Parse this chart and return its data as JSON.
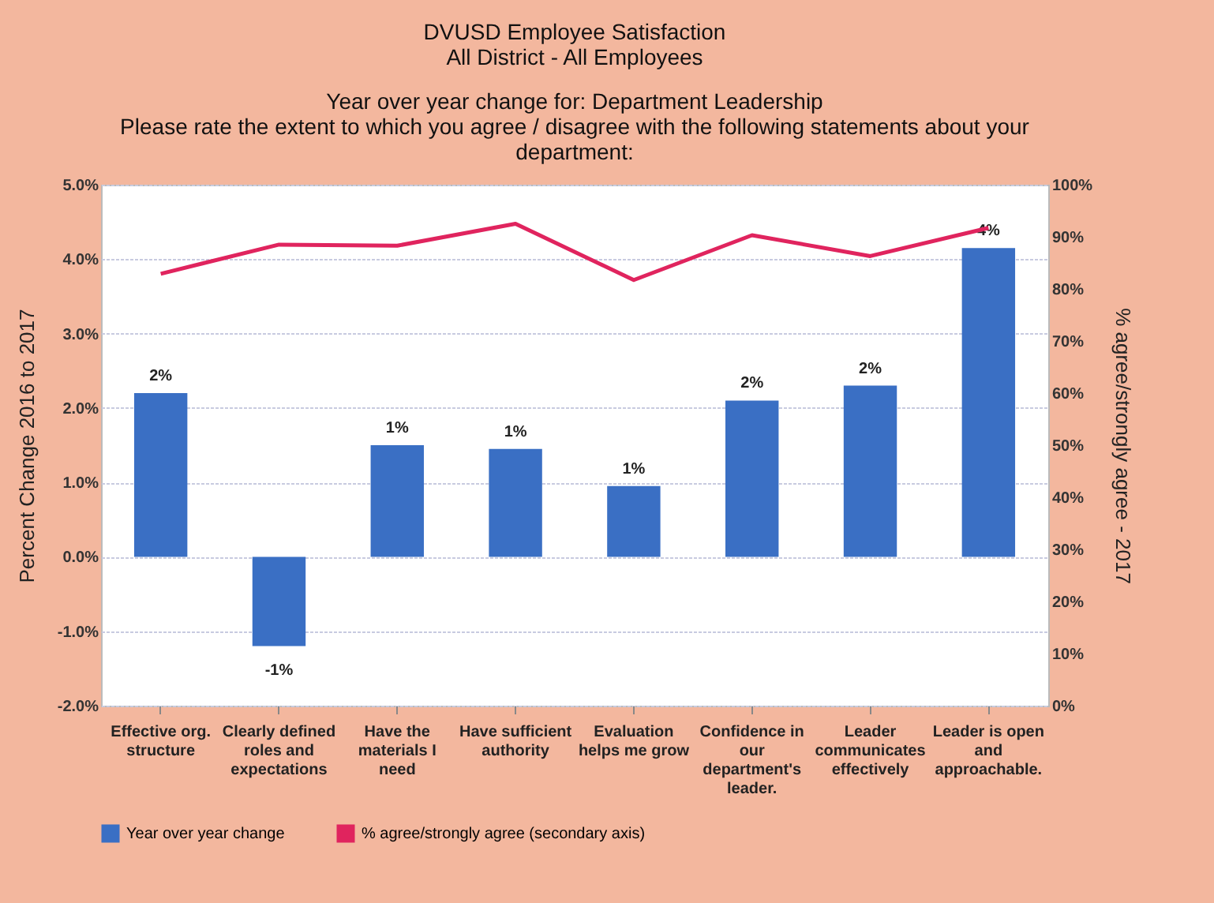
{
  "chart_data": {
    "type": "bar",
    "title": "DVUSD Employee Satisfaction\nAll District  -  All Employees",
    "subtitle": "Year over year change for:   Department Leadership\nPlease rate the extent to which you agree / disagree with the following statements about your\ndepartment:",
    "ylabel": "Percent Change 2016  to 2017",
    "y2label": "% agree/strongly agree - 2017",
    "categories": [
      "Effective org. structure",
      "Clearly defined roles and expectations",
      "Have the materials I need",
      "Have sufficient authority",
      "Evaluation helps me grow",
      "Confidence in our department's leader.",
      "Leader communicates effectively",
      "Leader is open and approachable."
    ],
    "series": [
      {
        "name": "Year over year change",
        "color": "#3a6fc4",
        "values": [
          2.2,
          -1.2,
          1.5,
          1.45,
          0.95,
          2.1,
          2.3,
          4.15
        ],
        "value_labels": [
          "2%",
          "-1%",
          "1%",
          "1%",
          "1%",
          "2%",
          "2%",
          "4%"
        ]
      },
      {
        "name": "% agree/strongly agree (secondary axis)",
        "type": "line",
        "axis": "y2",
        "color": "#e0245e",
        "values": [
          82.9,
          88.5,
          88.3,
          92.5,
          81.7,
          90.3,
          86.3,
          91.7
        ]
      }
    ],
    "ylim": [
      -2,
      5
    ],
    "yticks": [
      {
        "value": -2,
        "label": "-2.0%"
      },
      {
        "value": -1,
        "label": "-1.0%"
      },
      {
        "value": 0,
        "label": "0.0%"
      },
      {
        "value": 1,
        "label": "1.0%"
      },
      {
        "value": 2,
        "label": "2.0%"
      },
      {
        "value": 3,
        "label": "3.0%"
      },
      {
        "value": 4,
        "label": "4.0%"
      },
      {
        "value": 5,
        "label": "5.0%"
      }
    ],
    "y2lim": [
      0,
      100
    ],
    "y2ticks": [
      {
        "value": 0,
        "label": "0%"
      },
      {
        "value": 10,
        "label": "10%"
      },
      {
        "value": 20,
        "label": "20%"
      },
      {
        "value": 30,
        "label": "30%"
      },
      {
        "value": 40,
        "label": "40%"
      },
      {
        "value": 50,
        "label": "50%"
      },
      {
        "value": 60,
        "label": "60%"
      },
      {
        "value": 70,
        "label": "70%"
      },
      {
        "value": 80,
        "label": "80%"
      },
      {
        "value": 90,
        "label": "90%"
      },
      {
        "value": 100,
        "label": "100%"
      }
    ],
    "grid": "y",
    "legend": "bottom",
    "marker": "none",
    "line_style": "solid"
  }
}
